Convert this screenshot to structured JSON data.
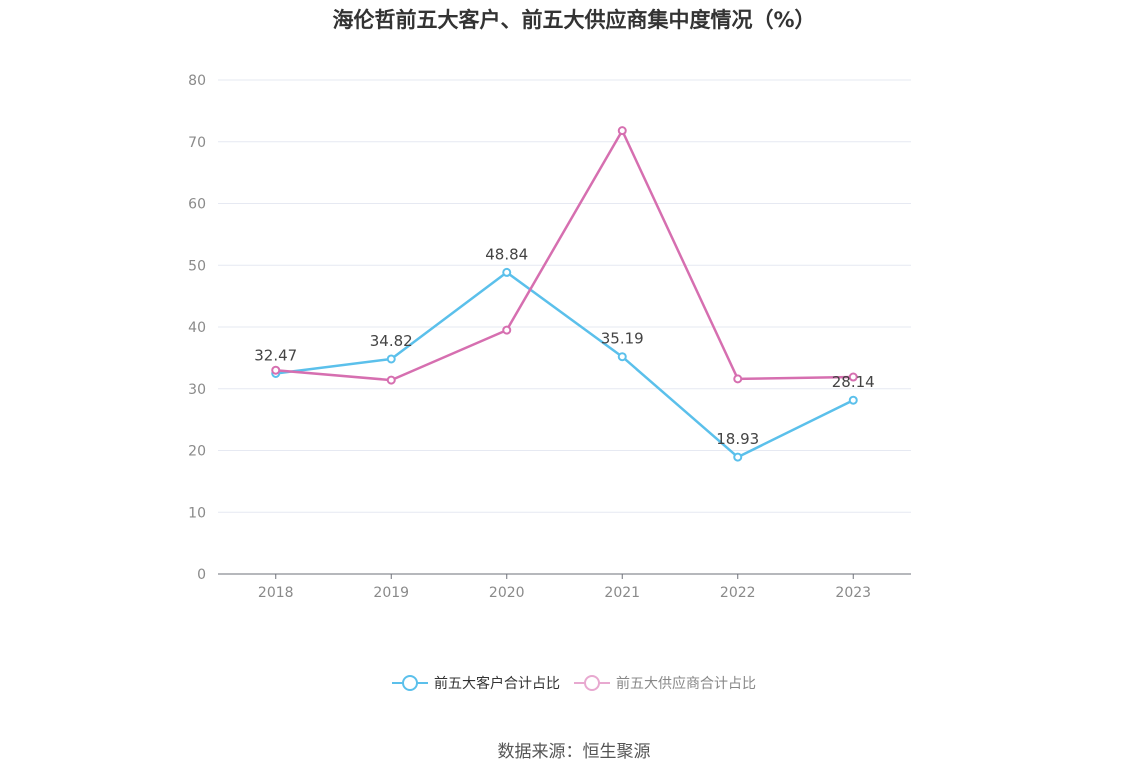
{
  "chart_data": {
    "type": "line",
    "title": "海伦哲前五大客户、前五大供应商集中度情况（%）",
    "categories": [
      "2018",
      "2019",
      "2020",
      "2021",
      "2022",
      "2023"
    ],
    "ylim": [
      0,
      80
    ],
    "yticks": [
      0,
      10,
      20,
      30,
      40,
      50,
      60,
      70,
      80
    ],
    "grid": true,
    "legend_position": "bottom",
    "series": [
      {
        "name": "前五大客户合计占比",
        "color": "#5bc0eb",
        "values": [
          32.47,
          34.82,
          48.84,
          35.19,
          18.93,
          28.14
        ],
        "labels": [
          "32.47",
          "34.82",
          "48.84",
          "35.19",
          "18.93",
          "28.14"
        ]
      },
      {
        "name": "前五大供应商合计占比",
        "color": "#d66fb0",
        "values": [
          33.0,
          31.4,
          39.5,
          71.8,
          31.6,
          31.9
        ]
      }
    ]
  },
  "source": "数据来源：恒生聚源"
}
